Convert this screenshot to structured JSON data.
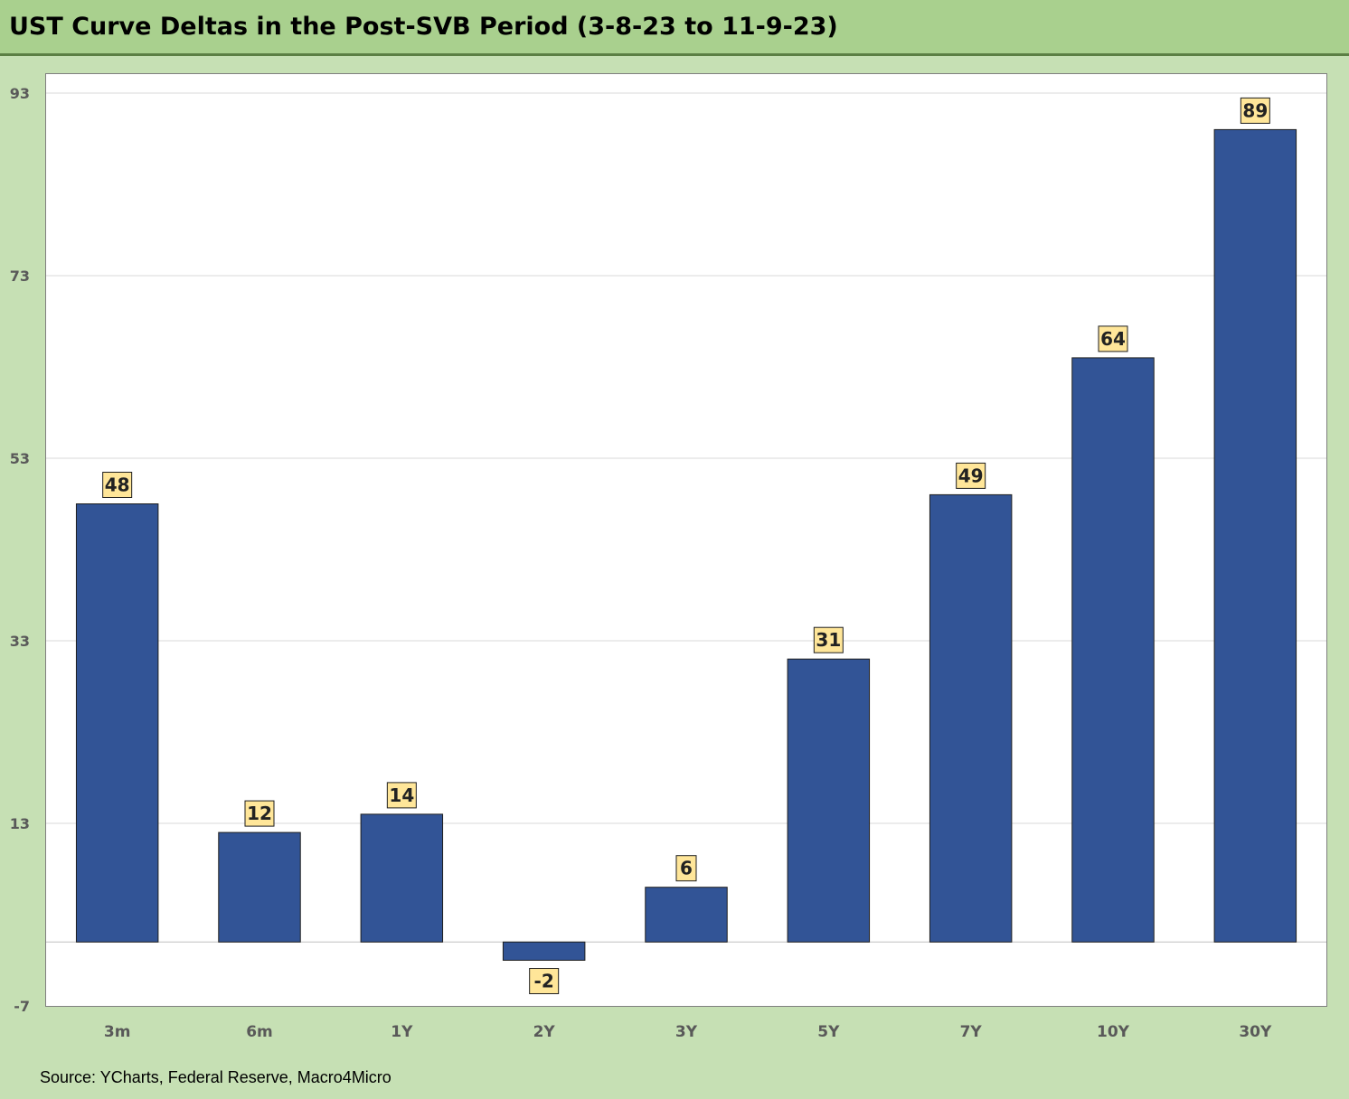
{
  "title": "UST Curve Deltas in the Post-SVB Period (3-8-23 to 11-9-23)",
  "source": "Source: YCharts, Federal Reserve, Macro4Micro",
  "colors": {
    "bar": "#325496",
    "label_bg": "#ffe699",
    "frame_bg": "#c6e0b4",
    "title_bg": "#a9d08e"
  },
  "chart_data": {
    "type": "bar",
    "categories": [
      "3m",
      "6m",
      "1Y",
      "2Y",
      "3Y",
      "5Y",
      "7Y",
      "10Y",
      "30Y"
    ],
    "values": [
      48,
      12,
      14,
      -2,
      6,
      31,
      49,
      64,
      89
    ],
    "ylim": [
      -7,
      93
    ],
    "yticks": [
      -7,
      13,
      33,
      53,
      73,
      93
    ],
    "xlabel": "",
    "ylabel": "",
    "grid": true,
    "legend": "none"
  }
}
